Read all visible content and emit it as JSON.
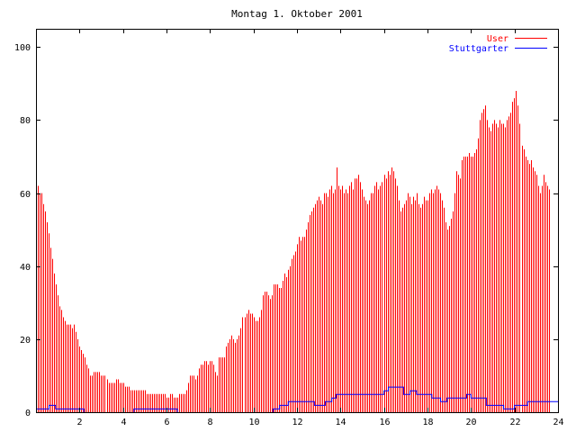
{
  "chart_data": {
    "type": "bar",
    "title": "Montag 1. Oktober 2001",
    "xlabel": "",
    "ylabel": "",
    "xlim": [
      0,
      24
    ],
    "ylim": [
      0,
      105
    ],
    "x_ticks": [
      2,
      4,
      6,
      8,
      10,
      12,
      14,
      16,
      18,
      20,
      22,
      24
    ],
    "y_ticks": [
      0,
      20,
      40,
      60,
      80,
      100
    ],
    "legend_position": "top-right",
    "grid": false,
    "sample_interval_hours": 0.0833,
    "series": [
      {
        "name": "User",
        "style": "impulses",
        "color": "#ff0000",
        "values": [
          63,
          62,
          60,
          60,
          57,
          55,
          52,
          49,
          45,
          42,
          38,
          35,
          32,
          29,
          28,
          26,
          25,
          24,
          24,
          24,
          23,
          24,
          22,
          20,
          18,
          17,
          16,
          15,
          13,
          12,
          10,
          10,
          11,
          11,
          11,
          11,
          10,
          10,
          10,
          9,
          8,
          8,
          8,
          8,
          9,
          9,
          8,
          8,
          8,
          7,
          7,
          7,
          6,
          6,
          6,
          6,
          6,
          6,
          6,
          6,
          6,
          5,
          5,
          5,
          5,
          5,
          5,
          5,
          5,
          5,
          5,
          5,
          4,
          4,
          5,
          5,
          4,
          4,
          4,
          5,
          5,
          5,
          5,
          6,
          8,
          10,
          10,
          10,
          9,
          10,
          12,
          13,
          13,
          14,
          14,
          13,
          14,
          14,
          13,
          11,
          10,
          15,
          15,
          15,
          15,
          18,
          19,
          20,
          21,
          20,
          19,
          20,
          21,
          23,
          26,
          26,
          27,
          28,
          27,
          27,
          26,
          25,
          25,
          26,
          28,
          32,
          33,
          33,
          32,
          31,
          32,
          35,
          35,
          35,
          34,
          34,
          36,
          38,
          37,
          39,
          40,
          42,
          43,
          44,
          46,
          48,
          47,
          48,
          48,
          50,
          52,
          54,
          55,
          56,
          57,
          58,
          59,
          58,
          57,
          60,
          60,
          59,
          61,
          62,
          60,
          61,
          67,
          62,
          61,
          62,
          60,
          61,
          60,
          62,
          63,
          61,
          64,
          64,
          65,
          63,
          61,
          59,
          58,
          57,
          58,
          60,
          60,
          62,
          63,
          61,
          62,
          63,
          65,
          64,
          66,
          65,
          67,
          66,
          64,
          62,
          58,
          55,
          56,
          57,
          58,
          60,
          59,
          57,
          59,
          58,
          60,
          57,
          56,
          57,
          59,
          58,
          58,
          60,
          61,
          60,
          61,
          62,
          61,
          60,
          58,
          56,
          52,
          50,
          51,
          53,
          55,
          60,
          66,
          65,
          64,
          69,
          70,
          70,
          70,
          71,
          70,
          70,
          71,
          72,
          75,
          80,
          82,
          83,
          84,
          80,
          78,
          77,
          79,
          80,
          79,
          78,
          80,
          79,
          79,
          78,
          80,
          81,
          82,
          85,
          86,
          88,
          84,
          79,
          73,
          72,
          70,
          69,
          68,
          69,
          67,
          66,
          65,
          62,
          60,
          62,
          65,
          63,
          62,
          61
        ]
      },
      {
        "name": "Stuttgarter",
        "style": "steps",
        "color": "#0000ff",
        "points": [
          [
            0,
            1
          ],
          [
            0.6,
            1
          ],
          [
            0.6,
            2
          ],
          [
            0.9,
            2
          ],
          [
            0.9,
            1
          ],
          [
            2.2,
            1
          ],
          [
            2.2,
            0
          ],
          [
            4.5,
            0
          ],
          [
            4.5,
            1
          ],
          [
            6.5,
            1
          ],
          [
            6.5,
            0
          ],
          [
            10.9,
            0
          ],
          [
            10.9,
            1
          ],
          [
            11.2,
            1
          ],
          [
            11.2,
            2
          ],
          [
            11.6,
            2
          ],
          [
            11.6,
            3
          ],
          [
            12.8,
            3
          ],
          [
            12.8,
            2
          ],
          [
            13.3,
            2
          ],
          [
            13.3,
            3
          ],
          [
            13.6,
            3
          ],
          [
            13.6,
            4
          ],
          [
            13.8,
            4
          ],
          [
            13.8,
            5
          ],
          [
            16.0,
            5
          ],
          [
            16.0,
            6
          ],
          [
            16.2,
            6
          ],
          [
            16.2,
            7
          ],
          [
            16.9,
            7
          ],
          [
            16.9,
            5
          ],
          [
            17.2,
            5
          ],
          [
            17.2,
            6
          ],
          [
            17.5,
            6
          ],
          [
            17.5,
            5
          ],
          [
            18.2,
            5
          ],
          [
            18.2,
            4
          ],
          [
            18.6,
            4
          ],
          [
            18.6,
            3
          ],
          [
            18.9,
            3
          ],
          [
            18.9,
            4
          ],
          [
            19.8,
            4
          ],
          [
            19.8,
            5
          ],
          [
            20.0,
            5
          ],
          [
            20.0,
            4
          ],
          [
            20.7,
            4
          ],
          [
            20.7,
            2
          ],
          [
            21.5,
            2
          ],
          [
            21.5,
            1
          ],
          [
            22.0,
            1
          ],
          [
            22.0,
            2
          ],
          [
            22.6,
            2
          ],
          [
            22.6,
            3
          ],
          [
            24,
            3
          ]
        ]
      }
    ]
  }
}
